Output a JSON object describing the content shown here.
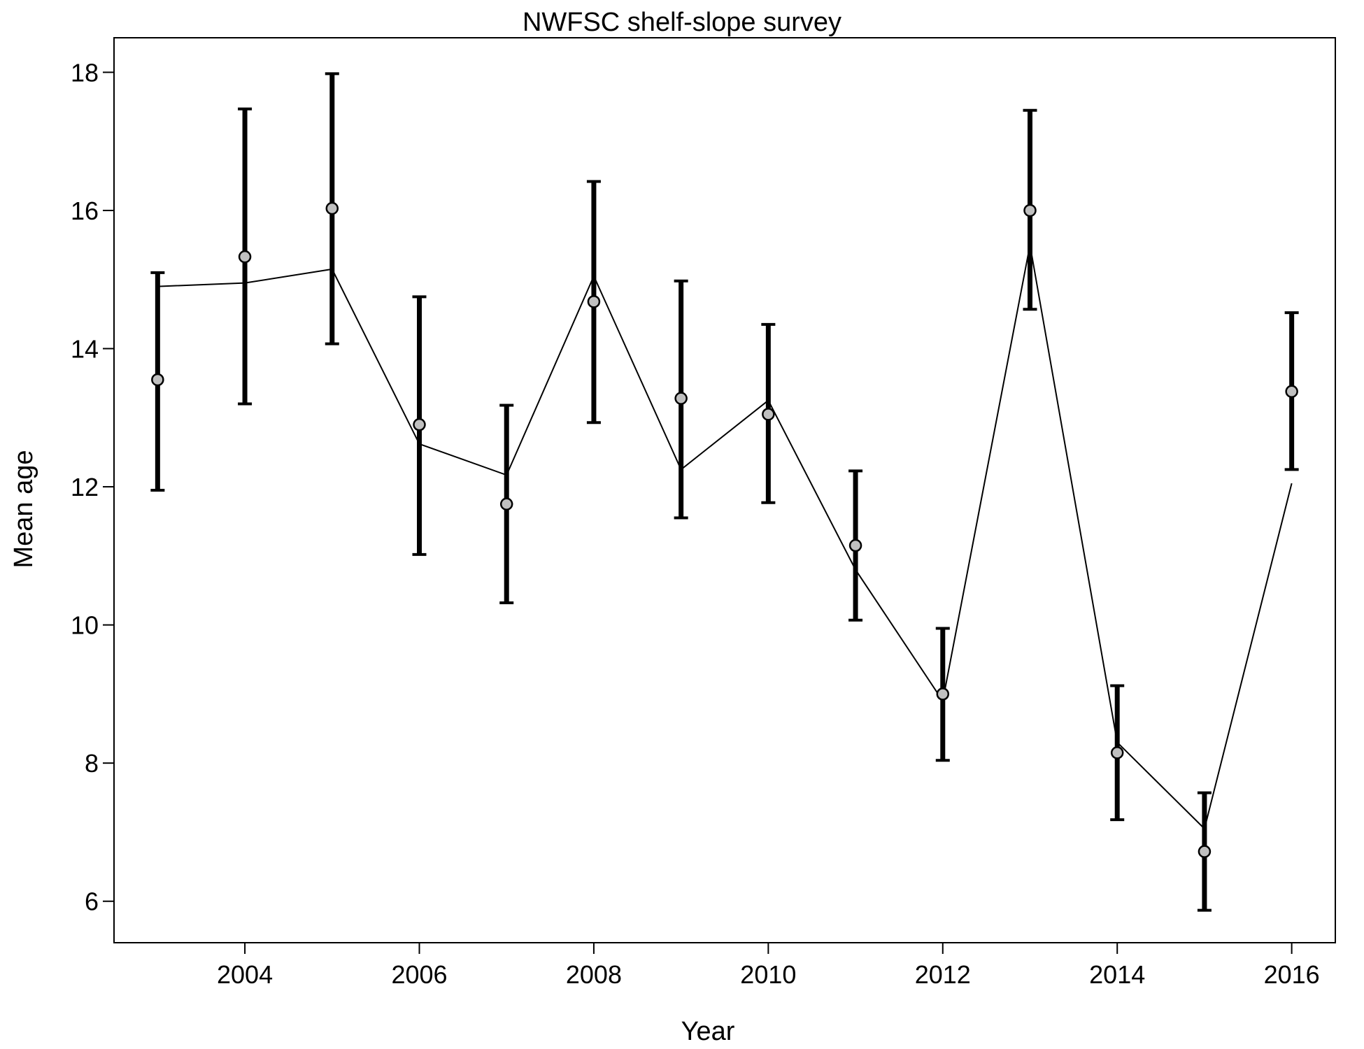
{
  "chart_data": {
    "type": "scatter",
    "title": "NWFSC shelf-slope survey",
    "xlabel": "Year",
    "ylabel": "Mean age",
    "xlim": [
      2002.5,
      2016.5
    ],
    "ylim": [
      5.4,
      18.5
    ],
    "xticks": [
      2004,
      2006,
      2008,
      2010,
      2012,
      2014,
      2016
    ],
    "yticks": [
      6,
      8,
      10,
      12,
      14,
      16,
      18
    ],
    "grid": false,
    "legend": "none",
    "series": [
      {
        "kind": "observed",
        "marker": "circle",
        "color": "#c0c0c0",
        "x": [
          2003,
          2004,
          2005,
          2006,
          2007,
          2008,
          2009,
          2010,
          2011,
          2012,
          2013,
          2014,
          2015,
          2016
        ],
        "values": [
          13.55,
          15.33,
          16.03,
          12.9,
          11.75,
          14.68,
          13.28,
          13.05,
          11.15,
          9.0,
          16.0,
          8.15,
          6.72,
          13.38
        ],
        "lower": [
          11.95,
          13.2,
          14.07,
          11.02,
          10.32,
          12.93,
          11.55,
          11.77,
          10.07,
          8.04,
          14.57,
          7.18,
          5.87,
          12.25
        ],
        "upper": [
          15.1,
          17.47,
          17.98,
          14.75,
          13.18,
          16.42,
          14.98,
          14.35,
          12.23,
          9.95,
          17.45,
          9.12,
          7.57,
          14.52
        ]
      },
      {
        "kind": "expected",
        "marker": "line",
        "color": "#000000",
        "x": [
          2003,
          2004,
          2005,
          2006,
          2007,
          2008,
          2009,
          2010,
          2011,
          2012,
          2013,
          2014,
          2015,
          2016
        ],
        "values": [
          14.9,
          14.95,
          15.15,
          12.62,
          12.17,
          15.05,
          12.25,
          13.25,
          10.8,
          8.9,
          15.5,
          8.3,
          7.05,
          12.05
        ]
      }
    ]
  }
}
